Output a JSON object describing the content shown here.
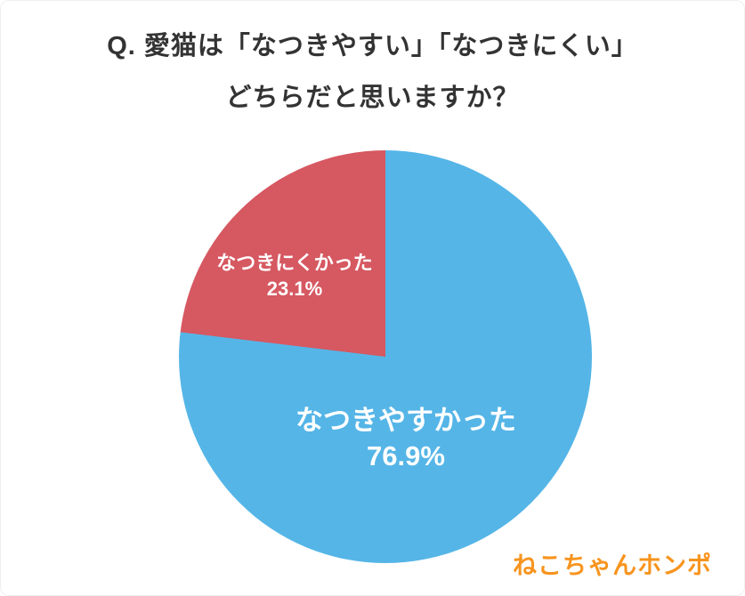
{
  "header": {
    "title_line1": "Q. 愛猫は「なつきやすい」「なつきにくい」",
    "title_line2": "どちらだと思いますか？"
  },
  "chart_data": {
    "type": "pie",
    "title": "Q. 愛猫は「なつきやすい」「なつきにくい」どちらだと思いますか？",
    "unit": "%",
    "start_angle_deg": 0,
    "direction": "clockwise",
    "legend_position": "none",
    "labels_on_slices": true,
    "slices": [
      {
        "label": "なつきやすかった",
        "value": 76.9,
        "display_value": "76.9%",
        "color": "#55b5e7"
      },
      {
        "label": "なつきにくかった",
        "value": 23.1,
        "display_value": "23.1%",
        "color": "#d65861"
      }
    ]
  },
  "footer": {
    "brand": "ねこちゃんホンポ",
    "brand_color": "#f7941e"
  }
}
